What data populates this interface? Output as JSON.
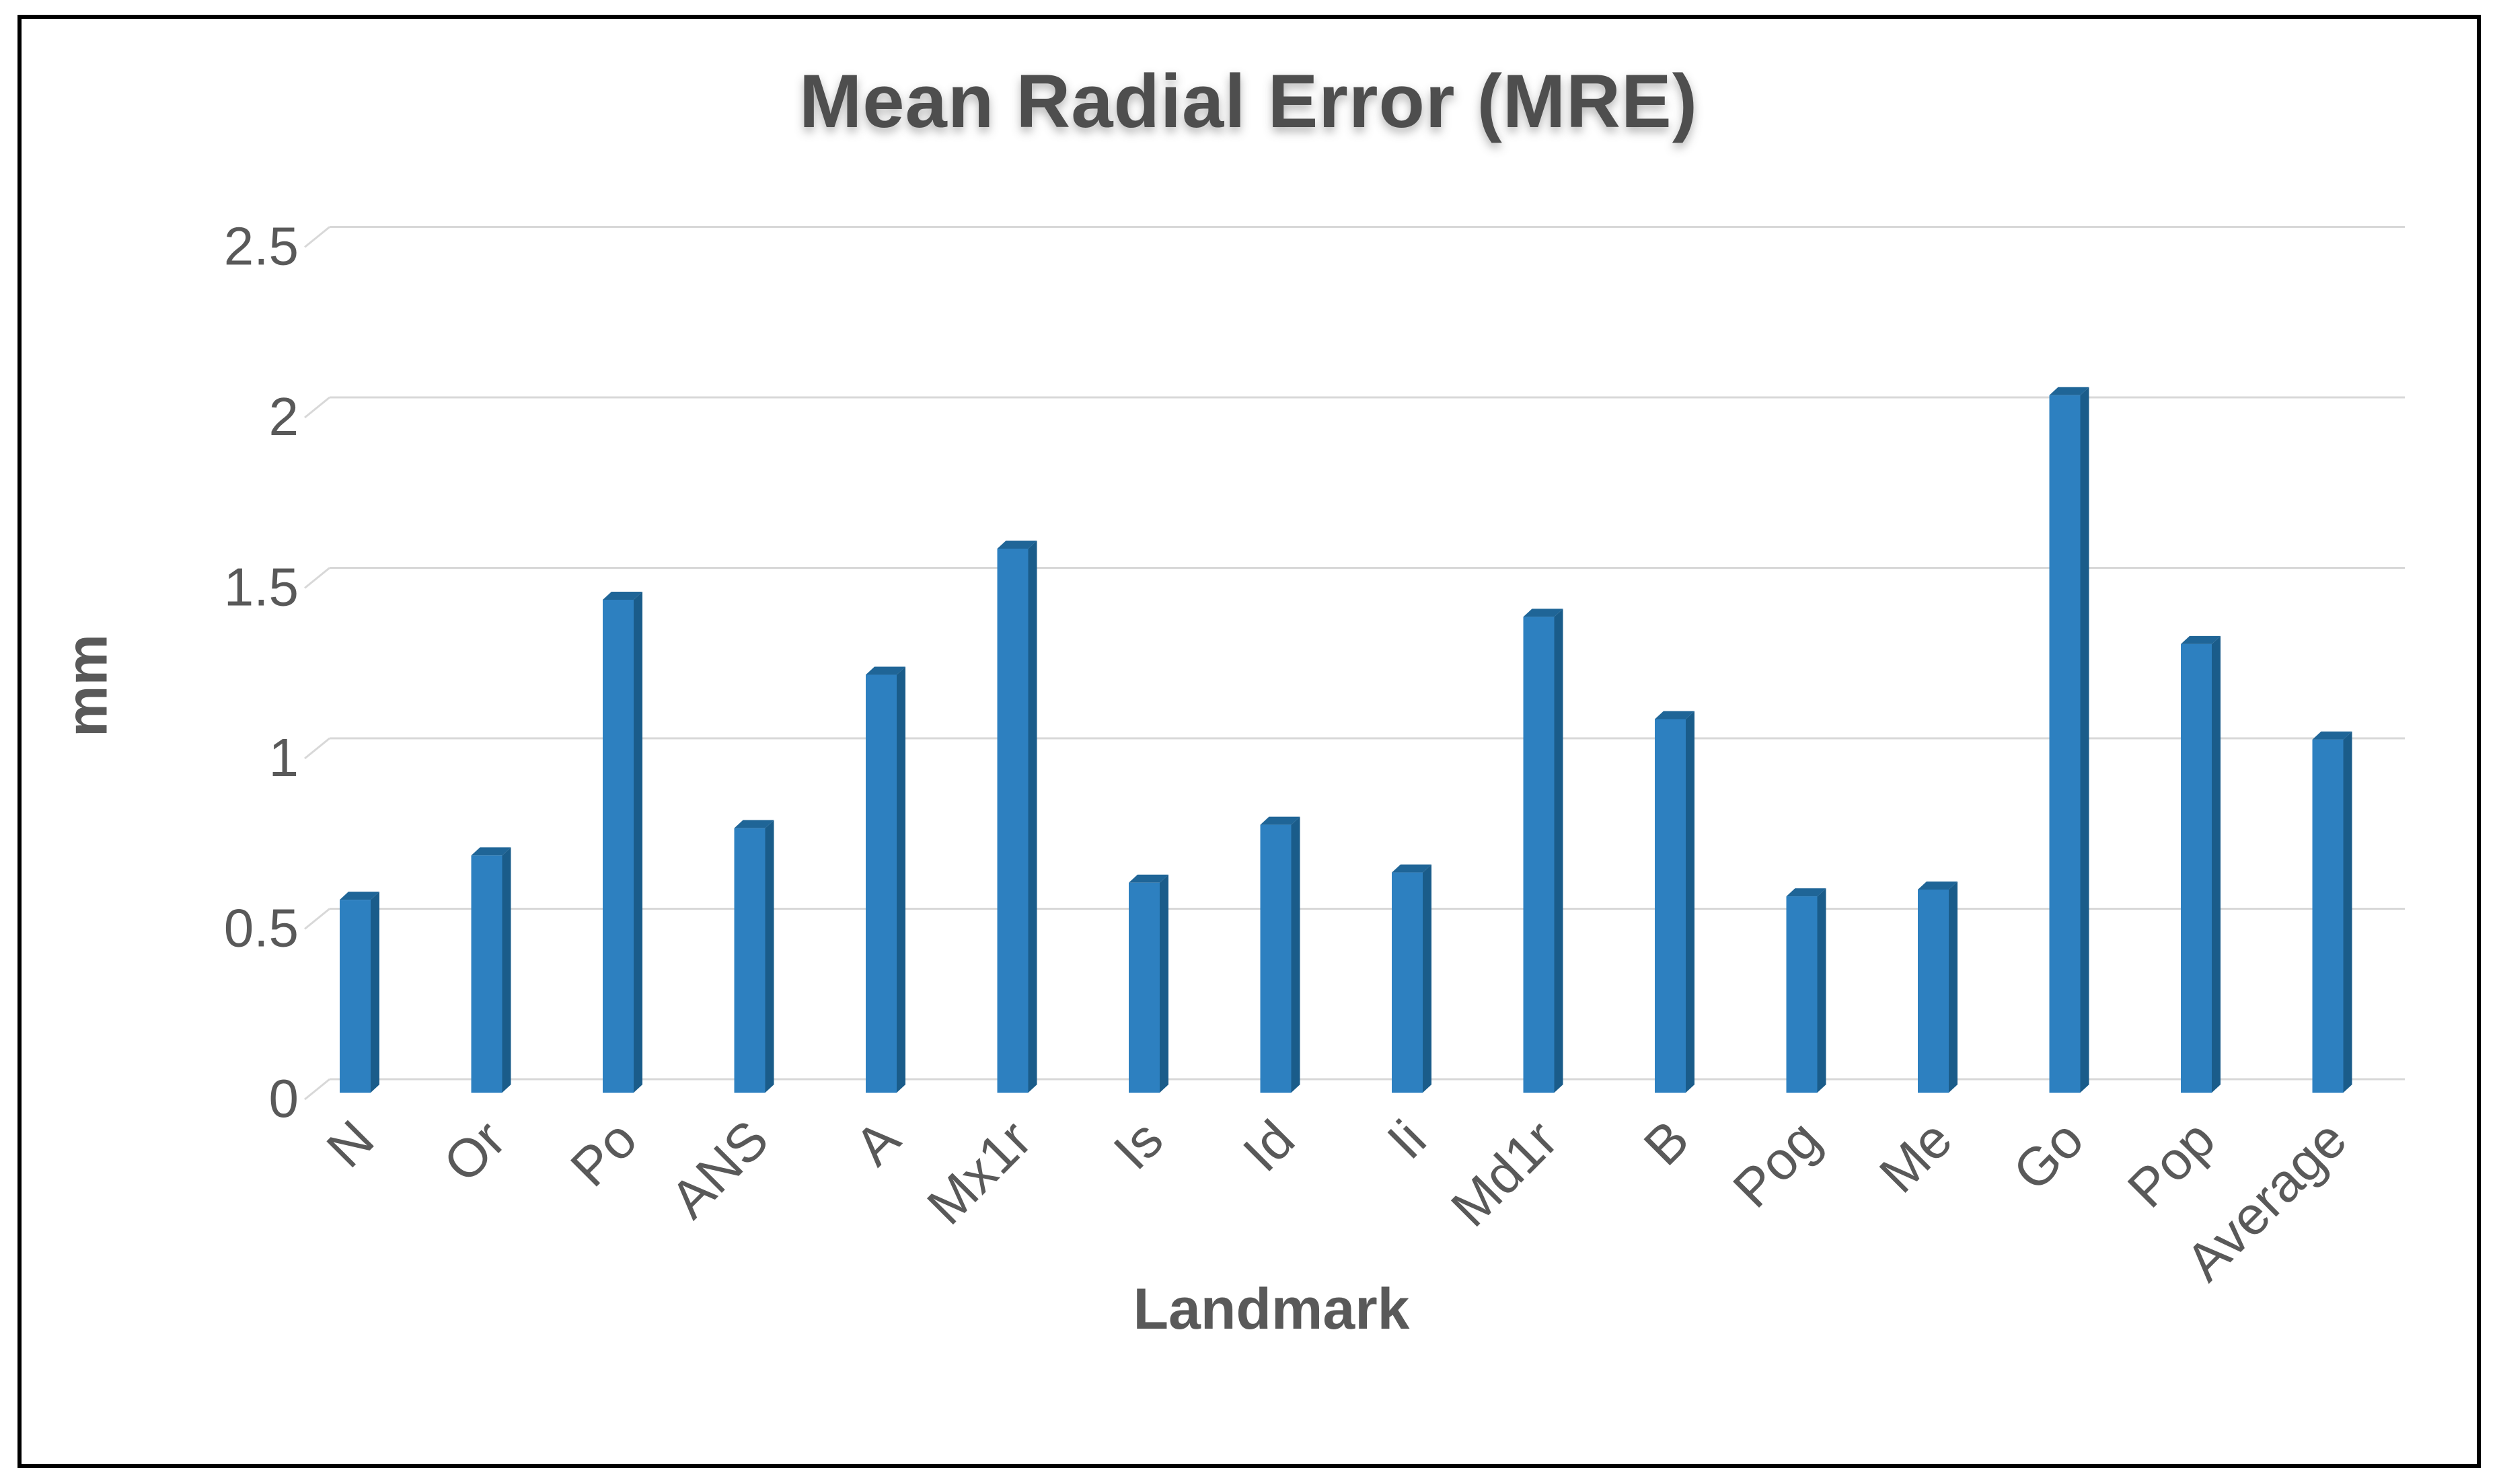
{
  "chart_data": {
    "type": "bar",
    "style": "3d-column",
    "title": "Mean Radial Error (MRE)",
    "xlabel": "Landmark",
    "ylabel": "mm",
    "categories": [
      "N",
      "Or",
      "Po",
      "ANS",
      "A",
      "Mx1r",
      "Is",
      "Id",
      "Ii",
      "Md1r",
      "B",
      "Pog",
      "Me",
      "Go",
      "Pop",
      "Average"
    ],
    "values": [
      0.55,
      0.68,
      1.43,
      0.76,
      1.21,
      1.58,
      0.6,
      0.77,
      0.63,
      1.38,
      1.08,
      0.56,
      0.58,
      2.03,
      1.3,
      1.02
    ],
    "ylim": [
      0,
      2.5
    ],
    "yticks": [
      0,
      0.5,
      1,
      1.5,
      2,
      2.5
    ],
    "ytick_labels": [
      "0",
      "0.5",
      "1",
      "1.5",
      "2",
      "2.5"
    ],
    "grid": true,
    "legend": false,
    "colors": {
      "bar_front": "#2D80C0",
      "bar_side": "#1A5C8A",
      "bar_top": "#1F6597",
      "gridline": "#D8D8D8",
      "axis_text": "#595959",
      "title_text": "#4E4E4E",
      "frame": "#000000"
    }
  }
}
